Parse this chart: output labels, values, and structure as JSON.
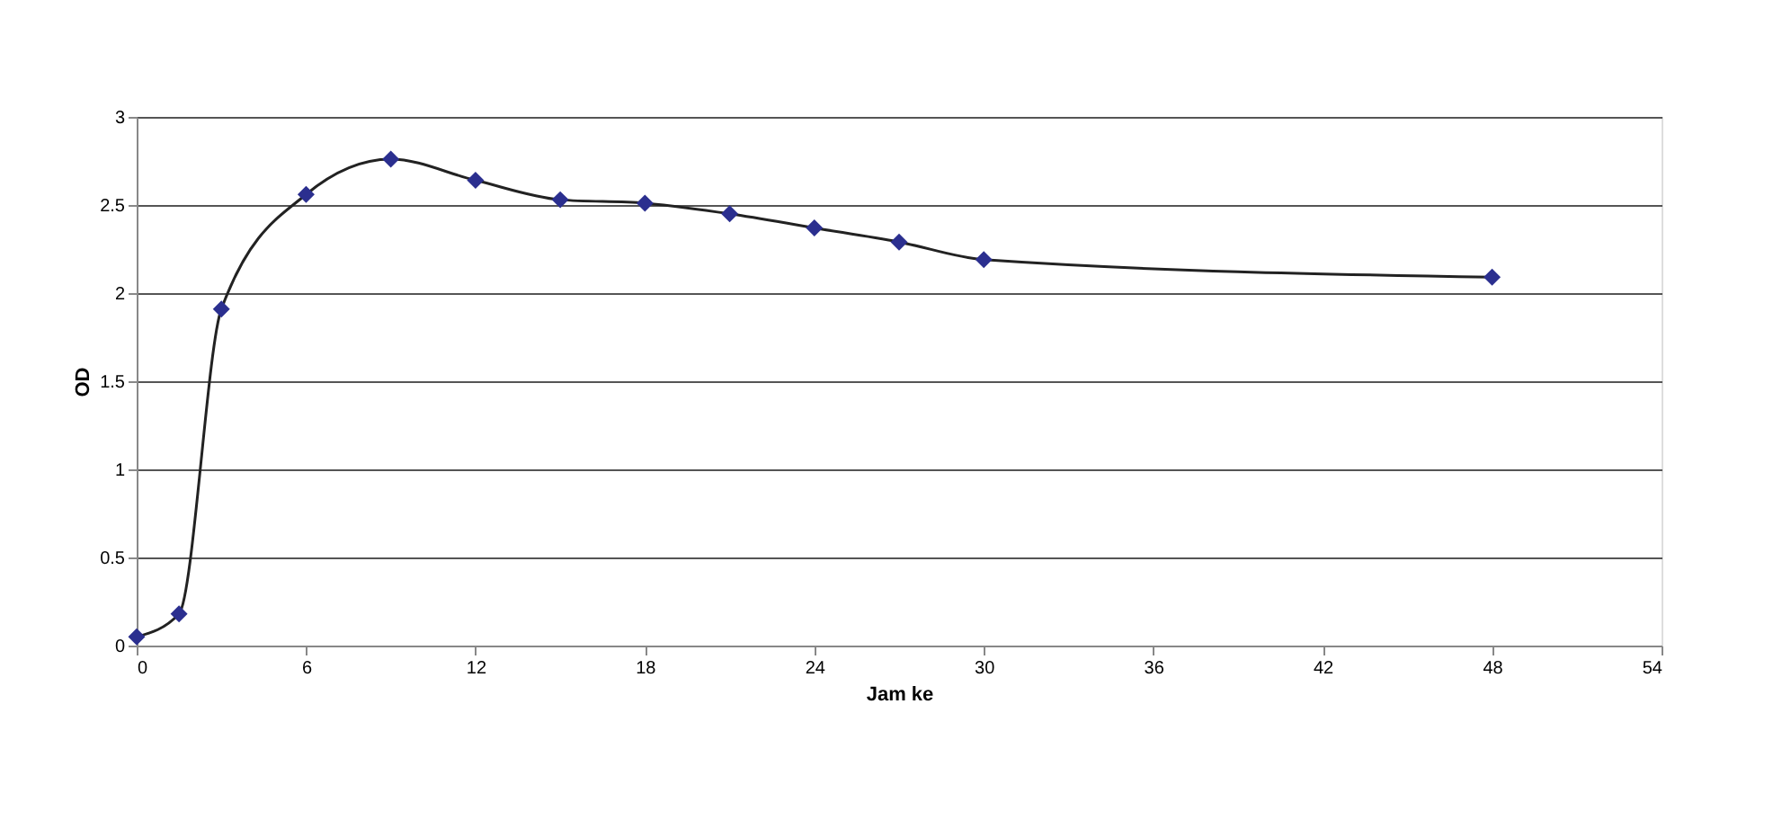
{
  "chart_data": {
    "type": "line",
    "xlabel": "Jam ke",
    "ylabel": "OD",
    "x": [
      0,
      1.5,
      3,
      6,
      9,
      12,
      15,
      18,
      21,
      24,
      27,
      30,
      48
    ],
    "series": [
      {
        "color": "#2b2f8f",
        "values": [
          0.05,
          0.18,
          1.91,
          2.56,
          2.76,
          2.64,
          2.53,
          2.51,
          2.45,
          2.37,
          2.29,
          2.19,
          2.09
        ]
      }
    ],
    "xlim": [
      0,
      54
    ],
    "xticks": [
      0,
      6,
      12,
      18,
      24,
      30,
      36,
      42,
      48,
      54
    ],
    "ylim": [
      0,
      3
    ],
    "yticks": [
      0,
      0.5,
      1,
      1.5,
      2,
      2.5,
      3
    ],
    "grid": "y",
    "marker": "diamond",
    "line_style": "solid",
    "legend": false
  }
}
